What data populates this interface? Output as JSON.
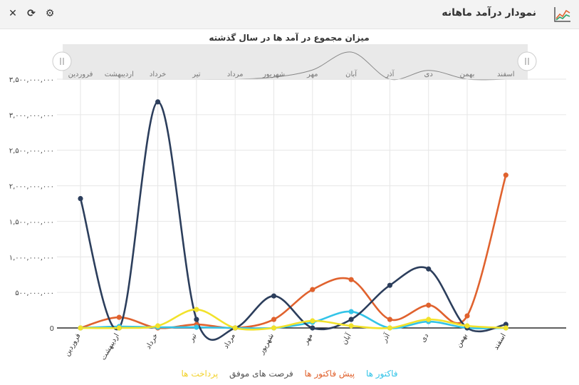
{
  "header": {
    "title": "نمودار درآمد ماهانه"
  },
  "tools": [
    {
      "name": "settings-icon",
      "glyph": "⚙"
    },
    {
      "name": "refresh-icon",
      "glyph": "⟳"
    },
    {
      "name": "close-icon",
      "glyph": "✕"
    }
  ],
  "colors": {
    "invoices": "#33c4e8",
    "preinvoices": "#e0622e",
    "opportunities": "#2c3e5c",
    "payments": "#f2e22b",
    "grid": "#e6e6e6",
    "navigator": "#e9e9e9"
  },
  "chart_data": {
    "type": "line",
    "title": "میزان مجموع در آمد ها در سال گذشته",
    "categories": [
      "فروردین",
      "اردیبهشت",
      "خرداد",
      "تیر",
      "مرداد",
      "شهریور",
      "مهر",
      "آبان",
      "آذر",
      "دی",
      "بهمن",
      "اسفند"
    ],
    "ylim": [
      0,
      3500000000
    ],
    "yticks": [
      "0",
      "۵۰۰,۰۰۰,۰۰۰",
      "۱,۰۰۰,۰۰۰,۰۰۰",
      "۱,۵۰۰,۰۰۰,۰۰۰",
      "۲,۰۰۰,۰۰۰,۰۰۰",
      "۲,۵۰۰,۰۰۰,۰۰۰",
      "۳,۰۰۰,۰۰۰,۰۰۰",
      "۳,۵۰۰,۰۰۰,۰۰۰"
    ],
    "series": [
      {
        "name": "فاکتور ها",
        "color": "#33c4e8",
        "values": [
          0,
          20000000,
          10000000,
          10000000,
          0,
          0,
          80000000,
          230000000,
          0,
          90000000,
          0,
          0
        ]
      },
      {
        "name": "پیش فاکتور ها",
        "color": "#e0622e",
        "values": [
          0,
          150000000,
          0,
          50000000,
          0,
          120000000,
          540000000,
          680000000,
          120000000,
          320000000,
          170000000,
          2150000000
        ]
      },
      {
        "name": "فرصت های موفق",
        "color": "#2c3e5c",
        "values": [
          1820000000,
          0,
          3180000000,
          120000000,
          0,
          450000000,
          0,
          120000000,
          600000000,
          830000000,
          0,
          50000000
        ]
      },
      {
        "name": "پرداخت ها",
        "color": "#f2e22b",
        "values": [
          0,
          0,
          30000000,
          260000000,
          0,
          0,
          100000000,
          30000000,
          0,
          120000000,
          30000000,
          0
        ]
      }
    ],
    "navigator_values": [
      0,
      0,
      0,
      0,
      0,
      50000000,
      230000000,
      680000000,
      0,
      220000000,
      0,
      0
    ]
  }
}
